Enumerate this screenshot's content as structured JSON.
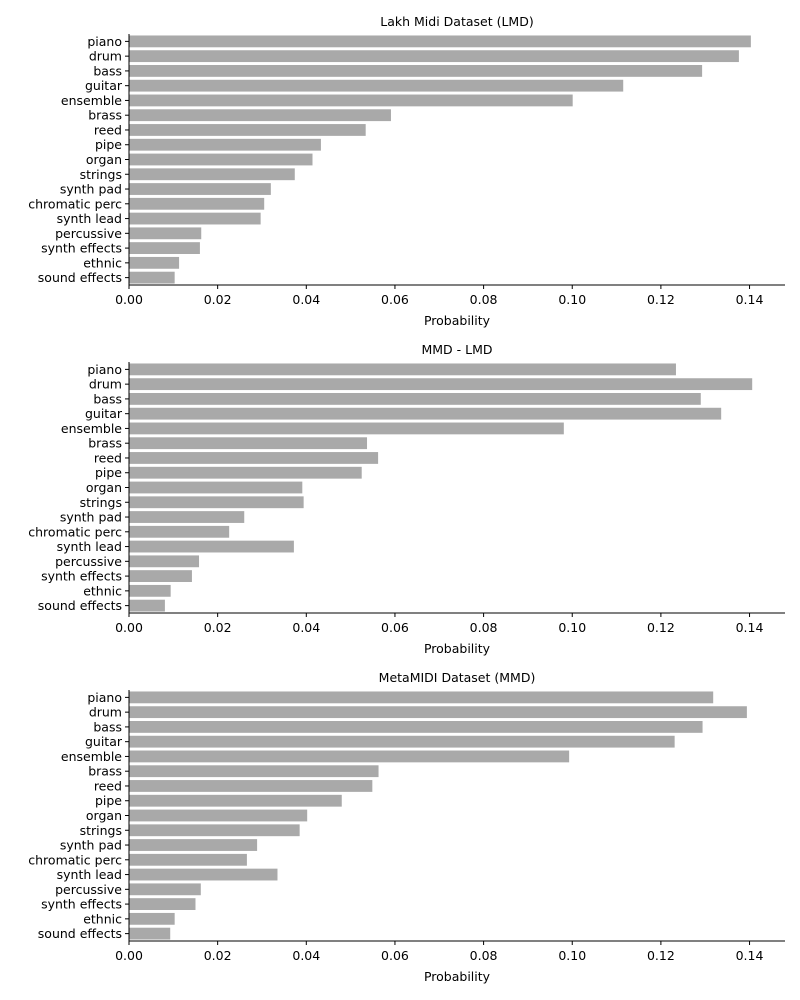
{
  "chart_data": [
    {
      "type": "bar",
      "orientation": "horizontal",
      "title": "Lakh Midi Dataset (LMD)",
      "xlabel": "Probability",
      "ylabel": "",
      "xlim": [
        0,
        0.148
      ],
      "xticks": [
        "0.00",
        "0.02",
        "0.04",
        "0.06",
        "0.08",
        "0.10",
        "0.12",
        "0.14"
      ],
      "categories": [
        "piano",
        "drum",
        "bass",
        "guitar",
        "ensemble",
        "brass",
        "reed",
        "pipe",
        "organ",
        "strings",
        "synth pad",
        "chromatic perc",
        "synth lead",
        "percussive",
        "synth effects",
        "ethnic",
        "sound effects"
      ],
      "values": [
        0.1403,
        0.1376,
        0.1293,
        0.1115,
        0.1001,
        0.0591,
        0.0534,
        0.0433,
        0.0414,
        0.0374,
        0.032,
        0.0305,
        0.0297,
        0.0163,
        0.016,
        0.0113,
        0.0103
      ],
      "color": "#a9a9a9",
      "grid": false
    },
    {
      "type": "bar",
      "orientation": "horizontal",
      "title": "MMD - LMD",
      "xlabel": "Probability",
      "ylabel": "",
      "xlim": [
        0,
        0.148
      ],
      "xticks": [
        "0.00",
        "0.02",
        "0.04",
        "0.06",
        "0.08",
        "0.10",
        "0.12",
        "0.14"
      ],
      "categories": [
        "piano",
        "drum",
        "bass",
        "guitar",
        "ensemble",
        "brass",
        "reed",
        "pipe",
        "organ",
        "strings",
        "synth pad",
        "chromatic perc",
        "synth lead",
        "percussive",
        "synth effects",
        "ethnic",
        "sound effects"
      ],
      "values": [
        0.1234,
        0.1406,
        0.129,
        0.1336,
        0.0981,
        0.0537,
        0.0562,
        0.0525,
        0.0391,
        0.0394,
        0.026,
        0.0226,
        0.0372,
        0.0158,
        0.0142,
        0.0094,
        0.0081
      ],
      "color": "#a9a9a9",
      "grid": false
    },
    {
      "type": "bar",
      "orientation": "horizontal",
      "title": "MetaMIDI Dataset (MMD)",
      "xlabel": "Probability",
      "ylabel": "",
      "xlim": [
        0,
        0.148
      ],
      "xticks": [
        "0.00",
        "0.02",
        "0.04",
        "0.06",
        "0.08",
        "0.10",
        "0.12",
        "0.14"
      ],
      "categories": [
        "piano",
        "drum",
        "bass",
        "guitar",
        "ensemble",
        "brass",
        "reed",
        "pipe",
        "organ",
        "strings",
        "synth pad",
        "chromatic perc",
        "synth lead",
        "percussive",
        "synth effects",
        "ethnic",
        "sound effects"
      ],
      "values": [
        0.1318,
        0.1394,
        0.1294,
        0.1231,
        0.0993,
        0.0563,
        0.0549,
        0.048,
        0.0402,
        0.0385,
        0.0289,
        0.0266,
        0.0335,
        0.0162,
        0.015,
        0.0103,
        0.0093
      ],
      "color": "#a9a9a9",
      "grid": false
    }
  ]
}
